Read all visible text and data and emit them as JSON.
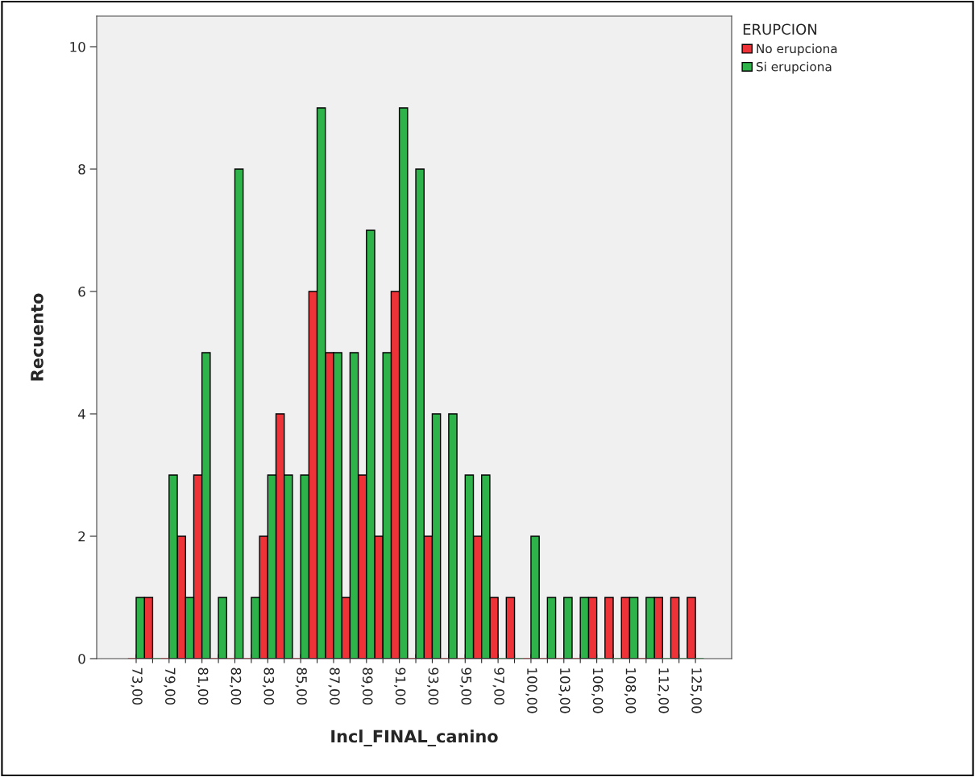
{
  "chart_data": {
    "type": "bar",
    "xlabel": "Incl_FINAL_canino",
    "ylabel": "Recuento",
    "legend_title": "ERUPCION",
    "legend": "top right",
    "categories": [
      "73,00",
      null,
      "79,00",
      null,
      "81,00",
      null,
      "82,00",
      null,
      "83,00",
      null,
      "85,00",
      null,
      "87,00",
      null,
      "89,00",
      null,
      "91,00",
      null,
      "93,00",
      null,
      "95,00",
      null,
      "97,00",
      null,
      "100,00",
      null,
      "103,00",
      null,
      "106,00",
      null,
      "108,00",
      null,
      "112,00",
      null,
      "125,00"
    ],
    "series": [
      {
        "name": "No erupciona",
        "color": "#ee3338",
        "values": [
          0,
          1,
          0,
          2,
          3,
          0,
          0,
          0,
          2,
          4,
          0,
          6,
          5,
          1,
          3,
          2,
          6,
          0,
          2,
          0,
          0,
          2,
          1,
          1,
          0,
          0,
          0,
          0,
          1,
          1,
          1,
          0,
          1,
          1,
          1
        ]
      },
      {
        "name": "Si erupciona",
        "color": "#2db34a",
        "values": [
          1,
          0,
          3,
          1,
          5,
          1,
          8,
          1,
          3,
          3,
          3,
          9,
          5,
          5,
          7,
          5,
          9,
          8,
          4,
          4,
          3,
          3,
          0,
          0,
          2,
          1,
          1,
          1,
          0,
          0,
          1,
          1,
          0,
          0,
          0
        ]
      }
    ],
    "ylim": [
      0,
      10.5
    ],
    "yticks": [
      0,
      2,
      4,
      6,
      8,
      10
    ]
  }
}
